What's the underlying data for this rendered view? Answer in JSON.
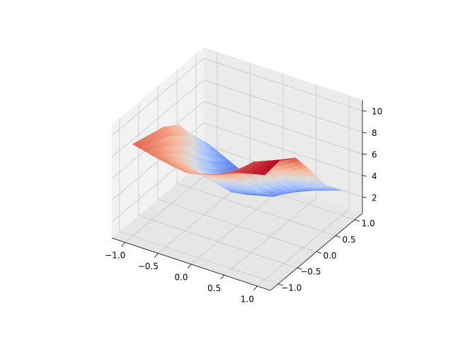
{
  "chart_data": {
    "type": "surface3d",
    "colormap": "coolwarm",
    "colormap_stops": [
      "#3b4cc0",
      "#6f92f3",
      "#aac7fd",
      "#dddcdc",
      "#f7b89c",
      "#e7745b",
      "#b40426"
    ],
    "grid": true,
    "x": {
      "ticks": [
        -1.0,
        -0.5,
        0.0,
        0.5,
        1.0
      ],
      "tick_labels": [
        "−1.0",
        "−0.5",
        "0.0",
        "0.5",
        "1.0"
      ],
      "range": [
        -1.2,
        1.2
      ]
    },
    "y": {
      "ticks": [
        -1.0,
        -0.5,
        0.0,
        0.5,
        1.0
      ],
      "tick_labels": [
        "−1.0",
        "−0.5",
        "0.0",
        "0.5",
        "1.0"
      ],
      "range": [
        -1.2,
        1.2
      ]
    },
    "z": {
      "ticks": [
        2,
        4,
        6,
        8,
        10
      ],
      "tick_labels": [
        "2",
        "4",
        "6",
        "8",
        "10"
      ],
      "range": [
        0.5,
        11
      ]
    },
    "surface": {
      "x_samples": [
        -1.0,
        -0.6,
        -0.2,
        0.2,
        0.6,
        1.0
      ],
      "y_samples": [
        -1.0,
        -0.6,
        -0.2,
        0.2,
        0.6,
        1.0
      ],
      "z_values": [
        [
          9.0,
          8.6,
          8.2,
          7.2,
          5.0,
          3.0
        ],
        [
          8.4,
          7.2,
          5.6,
          4.0,
          2.6,
          1.8
        ],
        [
          8.0,
          6.6,
          4.6,
          2.6,
          1.2,
          0.6
        ],
        [
          8.6,
          7.4,
          5.6,
          3.4,
          1.8,
          1.0
        ],
        [
          9.6,
          9.4,
          8.0,
          5.6,
          3.4,
          2.0
        ],
        [
          10.2,
          10.4,
          9.4,
          7.0,
          4.4,
          2.8
        ]
      ]
    }
  }
}
